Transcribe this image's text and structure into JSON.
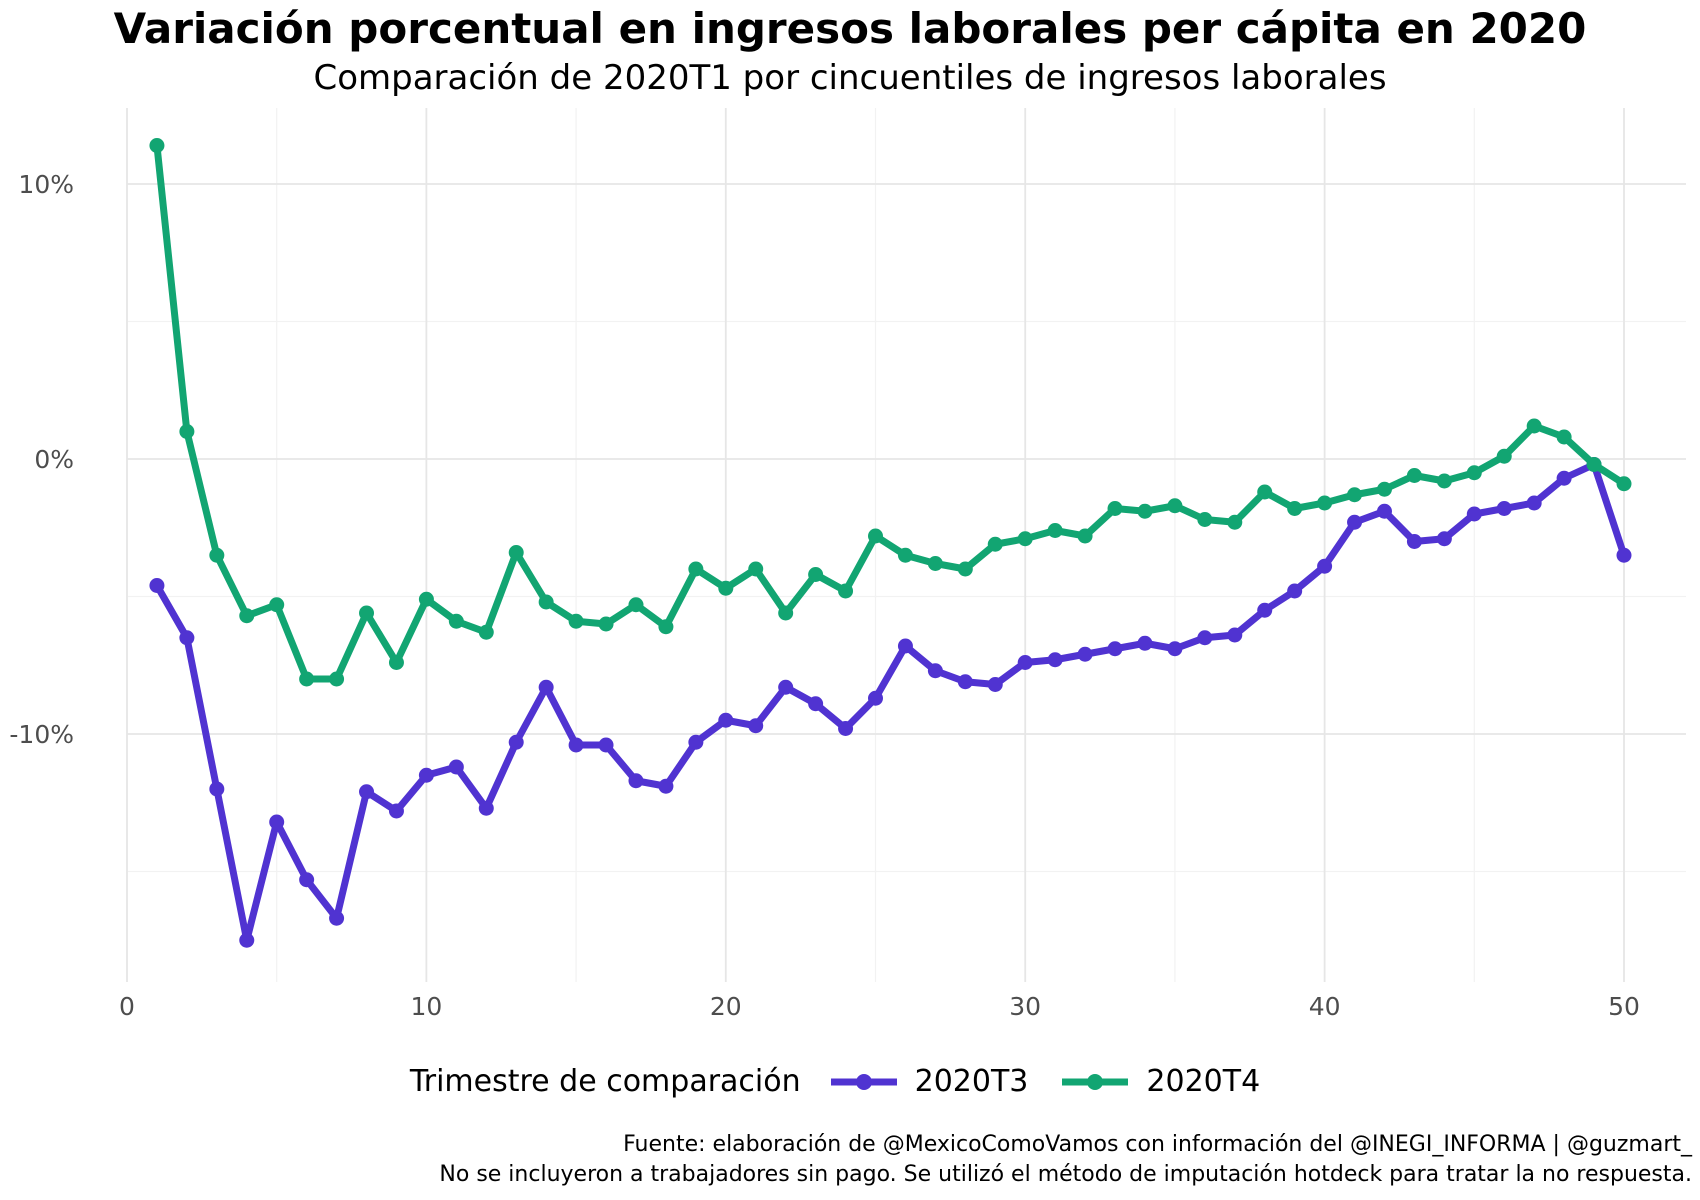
{
  "chart_data": {
    "type": "line",
    "title": "Variación porcentual en ingresos laborales per cápita en 2020",
    "subtitle": "Comparación de 2020T1 por cincuentiles de ingresos laborales",
    "xlabel": "",
    "ylabel": "",
    "xlim": [
      0,
      50
    ],
    "ylim": [
      -18.6,
      12.9
    ],
    "x_ticks": [
      0,
      10,
      20,
      30,
      40,
      50
    ],
    "x_tick_labels": [
      "0",
      "10",
      "20",
      "30",
      "40",
      "50"
    ],
    "y_ticks": [
      10,
      0,
      -10
    ],
    "y_tick_labels": [
      "10%",
      "0%",
      "-10%"
    ],
    "grid": true,
    "legend_title": "Trimestre de comparación",
    "legend_position": "bottom",
    "x": [
      1,
      2,
      3,
      4,
      5,
      6,
      7,
      8,
      9,
      10,
      11,
      12,
      13,
      14,
      15,
      16,
      17,
      18,
      19,
      20,
      21,
      22,
      23,
      24,
      25,
      26,
      27,
      28,
      29,
      30,
      31,
      32,
      33,
      34,
      35,
      36,
      37,
      38,
      39,
      40,
      41,
      42,
      43,
      44,
      45,
      46,
      47,
      48,
      49,
      50
    ],
    "series": [
      {
        "name": "2020T3",
        "color": "#5033d1",
        "values": [
          -4.6,
          -6.5,
          -12.0,
          -17.5,
          -13.2,
          -15.3,
          -16.7,
          -12.1,
          -12.8,
          -11.5,
          -11.2,
          -12.7,
          -10.3,
          -8.3,
          -10.4,
          -10.4,
          -11.7,
          -11.9,
          -10.3,
          -9.5,
          -9.7,
          -8.3,
          -8.9,
          -9.8,
          -8.7,
          -6.8,
          -7.7,
          -8.1,
          -8.2,
          -7.4,
          -7.3,
          -7.1,
          -6.9,
          -6.7,
          -6.9,
          -6.5,
          -6.4,
          -5.5,
          -4.8,
          -3.9,
          -2.3,
          -1.9,
          -3.0,
          -2.9,
          -2.0,
          -1.8,
          -1.6,
          -0.7,
          -0.2,
          -3.5
        ]
      },
      {
        "name": "2020T4",
        "color": "#12a572",
        "values": [
          11.4,
          1.0,
          -3.5,
          -5.7,
          -5.3,
          -8.0,
          -8.0,
          -5.6,
          -7.4,
          -5.1,
          -5.9,
          -6.3,
          -3.4,
          -5.2,
          -5.9,
          -6.0,
          -5.3,
          -6.1,
          -4.0,
          -4.7,
          -4.0,
          -5.6,
          -4.2,
          -4.8,
          -2.8,
          -3.5,
          -3.8,
          -4.0,
          -3.1,
          -2.9,
          -2.6,
          -2.8,
          -1.8,
          -1.9,
          -1.7,
          -2.2,
          -2.3,
          -1.2,
          -1.8,
          -1.6,
          -1.3,
          -1.1,
          -0.6,
          -0.8,
          -0.5,
          0.1,
          1.2,
          0.8,
          -0.2,
          -0.9
        ]
      }
    ]
  },
  "caption": {
    "line1": "Fuente: elaboración de @MexicoComoVamos con información del @INEGI_INFORMA | @guzmart_",
    "line2": "No se incluyeron a trabajadores sin pago. Se utilizó el método de imputación hotdeck para tratar la no respuesta."
  }
}
